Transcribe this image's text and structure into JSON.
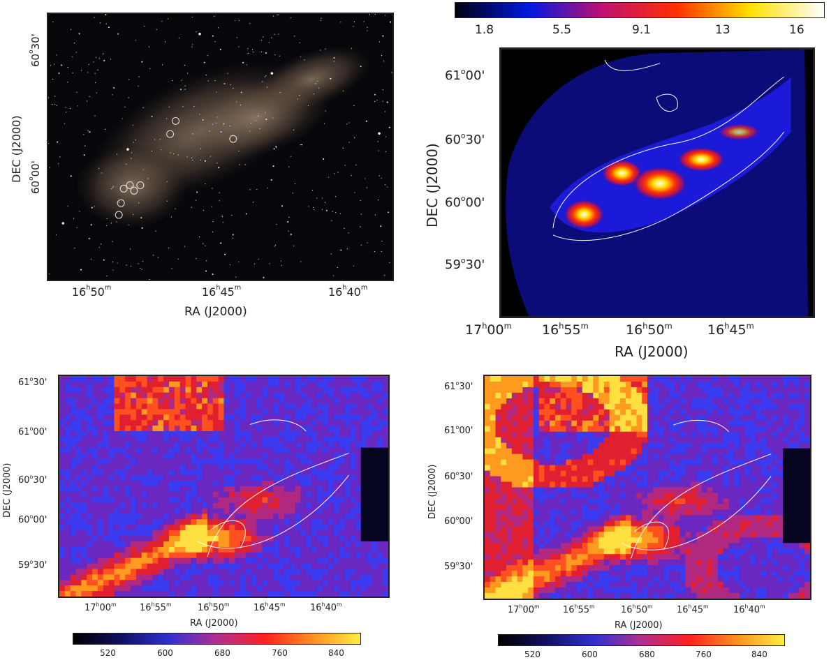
{
  "panels": {
    "optical": {
      "xlabel": "RA (J2000)",
      "ylabel": "DEC (J2000)",
      "xticks": [
        {
          "h": "16",
          "m": "50"
        },
        {
          "h": "16",
          "m": "45"
        },
        {
          "h": "16",
          "m": "40"
        }
      ],
      "yticks": [
        {
          "d": "60",
          "am": "30'"
        },
        {
          "d": "60",
          "am": "00'"
        }
      ]
    },
    "herschel": {
      "xlabel": "RA (J2000)",
      "ylabel": "DEC (J2000)",
      "xticks": [
        {
          "h": "17",
          "m": "00"
        },
        {
          "h": "16",
          "m": "55"
        },
        {
          "h": "16",
          "m": "50"
        },
        {
          "h": "16",
          "m": "45"
        }
      ],
      "yticks": [
        {
          "d": "61",
          "am": "00'"
        },
        {
          "d": "60",
          "am": "30'"
        },
        {
          "d": "60",
          "am": "00'"
        },
        {
          "d": "59",
          "am": "30'"
        }
      ],
      "colorbar_ticks": [
        "1.8",
        "5.5",
        "9.1",
        "13",
        "16"
      ],
      "colorbar_colors": [
        "#000010",
        "#0018e0",
        "#c01070",
        "#ff3000",
        "#ffe000",
        "#ffffff"
      ]
    },
    "map_left": {
      "xlabel": "RA (J2000)",
      "ylabel": "DEC (J2000)",
      "xticks": [
        {
          "h": "17",
          "m": "00"
        },
        {
          "h": "16",
          "m": "55"
        },
        {
          "h": "16",
          "m": "50"
        },
        {
          "h": "16",
          "m": "45"
        },
        {
          "h": "16",
          "m": "40"
        }
      ],
      "yticks": [
        {
          "d": "61",
          "am": "30'"
        },
        {
          "d": "61",
          "am": "00'"
        },
        {
          "d": "60",
          "am": "30'"
        },
        {
          "d": "60",
          "am": "00'"
        },
        {
          "d": "59",
          "am": "30'"
        }
      ],
      "colorbar_ticks": [
        "520",
        "600",
        "680",
        "760",
        "840"
      ],
      "colorbar_colors": [
        "#000000",
        "#101060",
        "#3030d0",
        "#b03090",
        "#ff2020",
        "#ff9020",
        "#ffee40"
      ]
    },
    "map_right": {
      "xlabel": "RA (J2000)",
      "ylabel": "DEC (J2000)",
      "xticks": [
        {
          "h": "17",
          "m": "00"
        },
        {
          "h": "16",
          "m": "55"
        },
        {
          "h": "16",
          "m": "50"
        },
        {
          "h": "16",
          "m": "45"
        },
        {
          "h": "16",
          "m": "40"
        }
      ],
      "yticks": [
        {
          "d": "61",
          "am": "30'"
        },
        {
          "d": "61",
          "am": "00'"
        },
        {
          "d": "60",
          "am": "30'"
        },
        {
          "d": "60",
          "am": "00'"
        },
        {
          "d": "59",
          "am": "30'"
        }
      ],
      "colorbar_ticks": [
        "520",
        "600",
        "680",
        "760",
        "840"
      ],
      "colorbar_colors": [
        "#000000",
        "#101060",
        "#3030d0",
        "#b03090",
        "#ff2020",
        "#ff9020",
        "#ffee40"
      ]
    }
  }
}
